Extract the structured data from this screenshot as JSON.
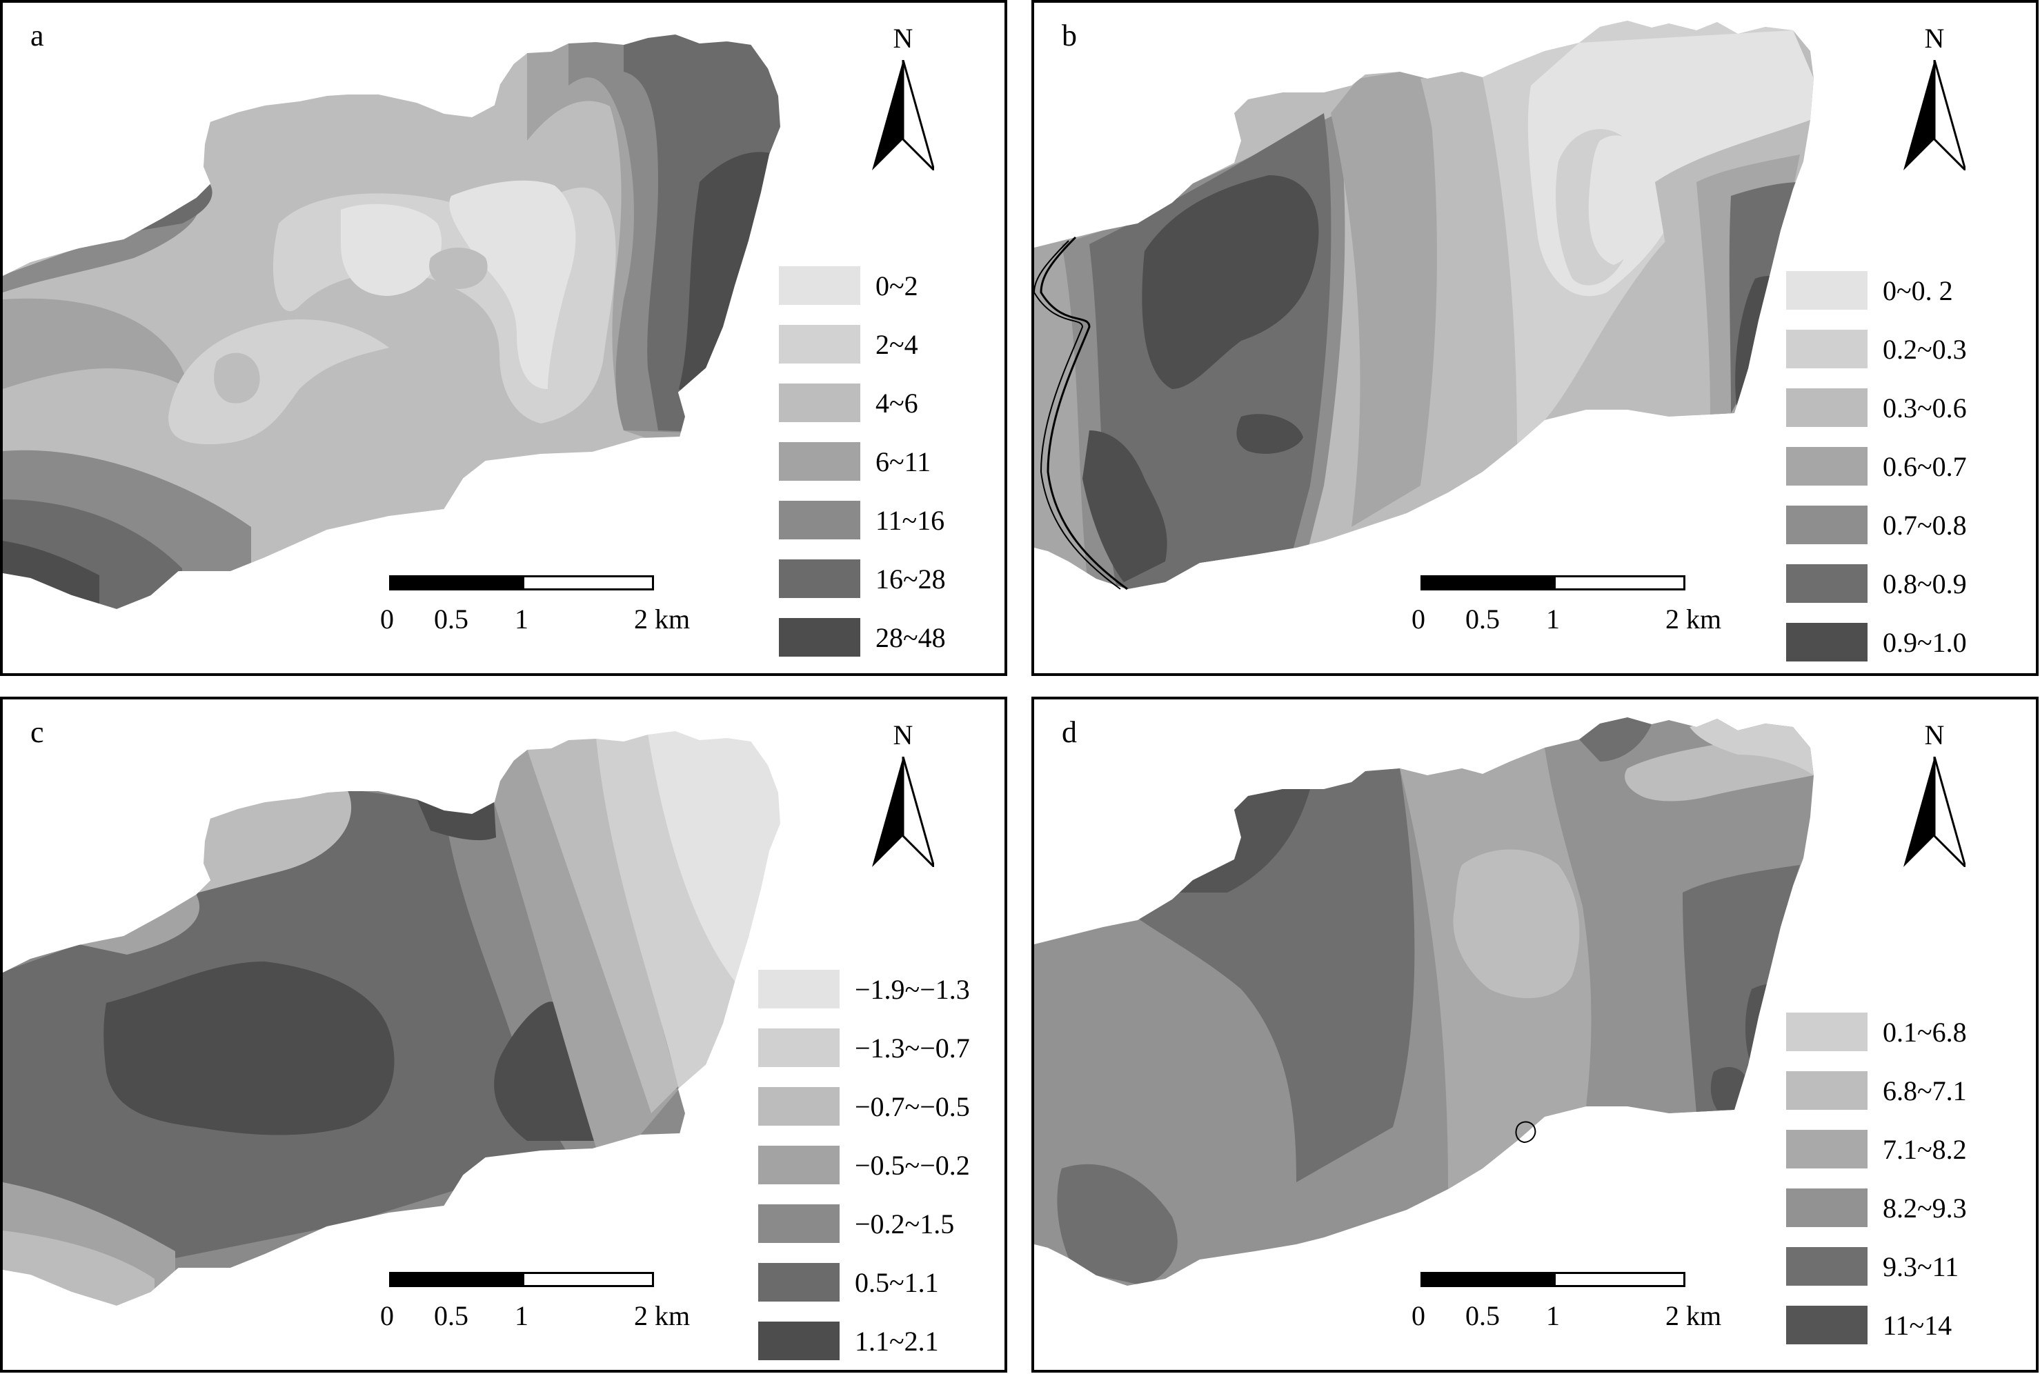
{
  "north_label": "N",
  "scale": {
    "ticks": [
      "0",
      "0.5",
      "1"
    ],
    "end_label": "2 km"
  },
  "panels": [
    {
      "id": "a",
      "label": "a",
      "legend": [
        "0~2",
        "2~4",
        "4~6",
        "6~11",
        "11~16",
        "16~28",
        "28~48"
      ],
      "colors": [
        "#e3e3e3",
        "#d2d2d2",
        "#bdbdbd",
        "#a3a3a3",
        "#8a8a8a",
        "#6b6b6b",
        "#4d4d4d"
      ]
    },
    {
      "id": "b",
      "label": "b",
      "legend": [
        "0~0. 2",
        "0.2~0.3",
        "0.3~0.6",
        "0.6~0.7",
        "0.7~0.8",
        "0.8~0.9",
        "0.9~1.0"
      ],
      "colors": [
        "#e3e3e3",
        "#d0d0d0",
        "#bcbcbc",
        "#a6a6a6",
        "#8e8e8e",
        "#6e6e6e",
        "#4e4e4e"
      ]
    },
    {
      "id": "c",
      "label": "c",
      "legend": [
        "−1.9~−1.3",
        "−1.3~−0.7",
        "−0.7~−0.5",
        "−0.5~−0.2",
        "−0.2~1.5",
        "0.5~1.1",
        "1.1~2.1"
      ],
      "colors": [
        "#e3e3e3",
        "#d0d0d0",
        "#bcbcbc",
        "#a3a3a3",
        "#8a8a8a",
        "#6b6b6b",
        "#4d4d4d"
      ]
    },
    {
      "id": "d",
      "label": "d",
      "legend": [
        "0.1~6.8",
        "6.8~7.1",
        "7.1~8.2",
        "8.2~9.3",
        "9.3~11",
        "11~14"
      ],
      "colors": [
        "#cfcfcf",
        "#bdbdbd",
        "#a9a9a9",
        "#929292",
        "#6f6f6f",
        "#555555"
      ]
    }
  ]
}
